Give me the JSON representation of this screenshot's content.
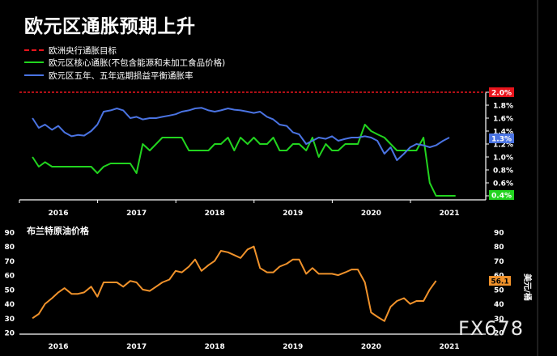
{
  "title": "欧元区通胀预期上升",
  "watermark": "FX678",
  "colors": {
    "red": "#e8141c",
    "green": "#22d41f",
    "blue": "#4a73e2",
    "orange": "#f0922b",
    "axis": "#ffffff",
    "bg": "#000000"
  },
  "legend": [
    {
      "label": "欧洲央行通胀目标",
      "color": "#e8141c",
      "style": "dashed"
    },
    {
      "label": "欧元区核心通胀(不包含能源和未加工食品价格)",
      "color": "#22d41f",
      "style": "solid"
    },
    {
      "label": "欧元区五年、五年远期损益平衡通胀率",
      "color": "#4a73e2",
      "style": "solid"
    }
  ],
  "oil_title": "布兰特原油价格",
  "chart_data": [
    {
      "type": "line",
      "xlabel": "",
      "ylabel": "",
      "x_ticks": [
        "2016",
        "2017",
        "2018",
        "2019",
        "2020",
        "2021"
      ],
      "y_ticks": [
        "2.0%",
        "1.8%",
        "1.6%",
        "1.4%",
        "1.2%",
        "1.0%",
        "0.8%",
        "0.6%",
        "0.4%"
      ],
      "ylim": [
        0.4,
        2.0
      ],
      "xlim": [
        2015.6,
        2021.9
      ],
      "reference_line": {
        "value": 2.0,
        "label": "2.0%",
        "color": "#e8141c"
      },
      "series": [
        {
          "name": "欧元区核心通胀(不包含能源和未加工食品价格)",
          "color": "#22d41f",
          "end_label": "0.4%",
          "points": [
            [
              2015.67,
              1.0
            ],
            [
              2015.75,
              0.85
            ],
            [
              2015.83,
              0.92
            ],
            [
              2015.92,
              0.85
            ],
            [
              2016.0,
              0.85
            ],
            [
              2016.08,
              0.85
            ],
            [
              2016.17,
              0.85
            ],
            [
              2016.25,
              0.85
            ],
            [
              2016.33,
              0.85
            ],
            [
              2016.42,
              0.85
            ],
            [
              2016.5,
              0.75
            ],
            [
              2016.58,
              0.85
            ],
            [
              2016.67,
              0.9
            ],
            [
              2016.75,
              0.9
            ],
            [
              2016.83,
              0.9
            ],
            [
              2016.92,
              0.9
            ],
            [
              2017.0,
              0.75
            ],
            [
              2017.08,
              1.2
            ],
            [
              2017.17,
              1.1
            ],
            [
              2017.25,
              1.2
            ],
            [
              2017.33,
              1.3
            ],
            [
              2017.42,
              1.3
            ],
            [
              2017.5,
              1.3
            ],
            [
              2017.58,
              1.3
            ],
            [
              2017.67,
              1.1
            ],
            [
              2017.75,
              1.1
            ],
            [
              2017.83,
              1.1
            ],
            [
              2017.92,
              1.1
            ],
            [
              2018.0,
              1.2
            ],
            [
              2018.08,
              1.2
            ],
            [
              2018.17,
              1.3
            ],
            [
              2018.25,
              1.1
            ],
            [
              2018.33,
              1.3
            ],
            [
              2018.42,
              1.2
            ],
            [
              2018.5,
              1.3
            ],
            [
              2018.58,
              1.2
            ],
            [
              2018.67,
              1.2
            ],
            [
              2018.75,
              1.3
            ],
            [
              2018.83,
              1.1
            ],
            [
              2018.92,
              1.1
            ],
            [
              2019.0,
              1.2
            ],
            [
              2019.08,
              1.2
            ],
            [
              2019.17,
              1.1
            ],
            [
              2019.25,
              1.3
            ],
            [
              2019.33,
              1.0
            ],
            [
              2019.42,
              1.2
            ],
            [
              2019.5,
              1.1
            ],
            [
              2019.58,
              1.1
            ],
            [
              2019.67,
              1.2
            ],
            [
              2019.75,
              1.2
            ],
            [
              2019.83,
              1.2
            ],
            [
              2019.92,
              1.5
            ],
            [
              2020.0,
              1.4
            ],
            [
              2020.08,
              1.35
            ],
            [
              2020.17,
              1.3
            ],
            [
              2020.25,
              1.2
            ],
            [
              2020.33,
              1.1
            ],
            [
              2020.42,
              1.1
            ],
            [
              2020.5,
              1.1
            ],
            [
              2020.58,
              1.1
            ],
            [
              2020.67,
              1.3
            ],
            [
              2020.75,
              0.6
            ],
            [
              2020.83,
              0.4
            ],
            [
              2020.92,
              0.4
            ],
            [
              2021.0,
              0.4
            ],
            [
              2021.08,
              0.4
            ]
          ]
        },
        {
          "name": "欧元区五年、五年远期损益平衡通胀率",
          "color": "#4a73e2",
          "end_label": "1.3%",
          "points": [
            [
              2015.67,
              1.6
            ],
            [
              2015.75,
              1.45
            ],
            [
              2015.83,
              1.5
            ],
            [
              2015.92,
              1.42
            ],
            [
              2016.0,
              1.48
            ],
            [
              2016.08,
              1.38
            ],
            [
              2016.17,
              1.32
            ],
            [
              2016.25,
              1.34
            ],
            [
              2016.33,
              1.33
            ],
            [
              2016.42,
              1.4
            ],
            [
              2016.5,
              1.5
            ],
            [
              2016.58,
              1.7
            ],
            [
              2016.67,
              1.72
            ],
            [
              2016.75,
              1.75
            ],
            [
              2016.83,
              1.72
            ],
            [
              2016.92,
              1.6
            ],
            [
              2017.0,
              1.62
            ],
            [
              2017.08,
              1.58
            ],
            [
              2017.17,
              1.6
            ],
            [
              2017.25,
              1.6
            ],
            [
              2017.33,
              1.62
            ],
            [
              2017.42,
              1.64
            ],
            [
              2017.5,
              1.66
            ],
            [
              2017.58,
              1.7
            ],
            [
              2017.67,
              1.72
            ],
            [
              2017.75,
              1.75
            ],
            [
              2017.83,
              1.76
            ],
            [
              2017.92,
              1.72
            ],
            [
              2018.0,
              1.7
            ],
            [
              2018.08,
              1.72
            ],
            [
              2018.17,
              1.75
            ],
            [
              2018.25,
              1.73
            ],
            [
              2018.33,
              1.72
            ],
            [
              2018.42,
              1.7
            ],
            [
              2018.5,
              1.68
            ],
            [
              2018.58,
              1.7
            ],
            [
              2018.67,
              1.62
            ],
            [
              2018.75,
              1.58
            ],
            [
              2018.83,
              1.5
            ],
            [
              2018.92,
              1.48
            ],
            [
              2019.0,
              1.38
            ],
            [
              2019.08,
              1.35
            ],
            [
              2019.17,
              1.2
            ],
            [
              2019.25,
              1.25
            ],
            [
              2019.33,
              1.3
            ],
            [
              2019.42,
              1.28
            ],
            [
              2019.5,
              1.32
            ],
            [
              2019.58,
              1.25
            ],
            [
              2019.67,
              1.28
            ],
            [
              2019.75,
              1.3
            ],
            [
              2019.83,
              1.3
            ],
            [
              2019.92,
              1.32
            ],
            [
              2020.0,
              1.3
            ],
            [
              2020.08,
              1.25
            ],
            [
              2020.17,
              1.05
            ],
            [
              2020.25,
              1.15
            ],
            [
              2020.33,
              0.95
            ],
            [
              2020.42,
              1.05
            ],
            [
              2020.5,
              1.15
            ],
            [
              2020.58,
              1.2
            ],
            [
              2020.67,
              1.18
            ],
            [
              2020.75,
              1.15
            ],
            [
              2020.83,
              1.18
            ],
            [
              2020.92,
              1.25
            ],
            [
              2021.0,
              1.3
            ]
          ]
        }
      ]
    },
    {
      "type": "line",
      "title": "布兰特原油价格",
      "xlabel": "",
      "ylabel": "美元/桶",
      "x_ticks": [
        "2016",
        "2017",
        "2018",
        "2019",
        "2020",
        "2021"
      ],
      "y_ticks": [
        90,
        80,
        70,
        60,
        50,
        40,
        30,
        20
      ],
      "ylim": [
        20,
        90
      ],
      "xlim": [
        2015.6,
        2021.9
      ],
      "series": [
        {
          "name": "布兰特原油价格",
          "color": "#f0922b",
          "end_label": "56.1",
          "points": [
            [
              2015.67,
              30
            ],
            [
              2015.75,
              33
            ],
            [
              2015.83,
              40
            ],
            [
              2015.92,
              44
            ],
            [
              2016.0,
              48
            ],
            [
              2016.08,
              51
            ],
            [
              2016.17,
              47
            ],
            [
              2016.25,
              47
            ],
            [
              2016.33,
              48
            ],
            [
              2016.42,
              52
            ],
            [
              2016.5,
              45
            ],
            [
              2016.58,
              55
            ],
            [
              2016.67,
              55
            ],
            [
              2016.75,
              55
            ],
            [
              2016.83,
              52
            ],
            [
              2016.92,
              56
            ],
            [
              2017.0,
              55
            ],
            [
              2017.08,
              50
            ],
            [
              2017.17,
              49
            ],
            [
              2017.25,
              52
            ],
            [
              2017.33,
              55
            ],
            [
              2017.42,
              57
            ],
            [
              2017.5,
              63
            ],
            [
              2017.58,
              62
            ],
            [
              2017.67,
              66
            ],
            [
              2017.75,
              71
            ],
            [
              2017.83,
              63
            ],
            [
              2017.92,
              67
            ],
            [
              2018.0,
              70
            ],
            [
              2018.08,
              77
            ],
            [
              2018.17,
              76
            ],
            [
              2018.25,
              74
            ],
            [
              2018.33,
              72
            ],
            [
              2018.42,
              78
            ],
            [
              2018.5,
              80
            ],
            [
              2018.58,
              65
            ],
            [
              2018.67,
              62
            ],
            [
              2018.75,
              62
            ],
            [
              2018.83,
              66
            ],
            [
              2018.92,
              68
            ],
            [
              2019.0,
              71
            ],
            [
              2019.08,
              71
            ],
            [
              2019.17,
              61
            ],
            [
              2019.25,
              65
            ],
            [
              2019.33,
              61
            ],
            [
              2019.42,
              61
            ],
            [
              2019.5,
              61
            ],
            [
              2019.58,
              60
            ],
            [
              2019.67,
              62
            ],
            [
              2019.75,
              64
            ],
            [
              2019.83,
              64
            ],
            [
              2019.92,
              55
            ],
            [
              2020.0,
              34
            ],
            [
              2020.08,
              31
            ],
            [
              2020.17,
              28
            ],
            [
              2020.25,
              38
            ],
            [
              2020.33,
              42
            ],
            [
              2020.42,
              44
            ],
            [
              2020.5,
              40
            ],
            [
              2020.58,
              42
            ],
            [
              2020.67,
              42
            ],
            [
              2020.75,
              50
            ],
            [
              2020.83,
              56.1
            ]
          ]
        }
      ]
    }
  ]
}
